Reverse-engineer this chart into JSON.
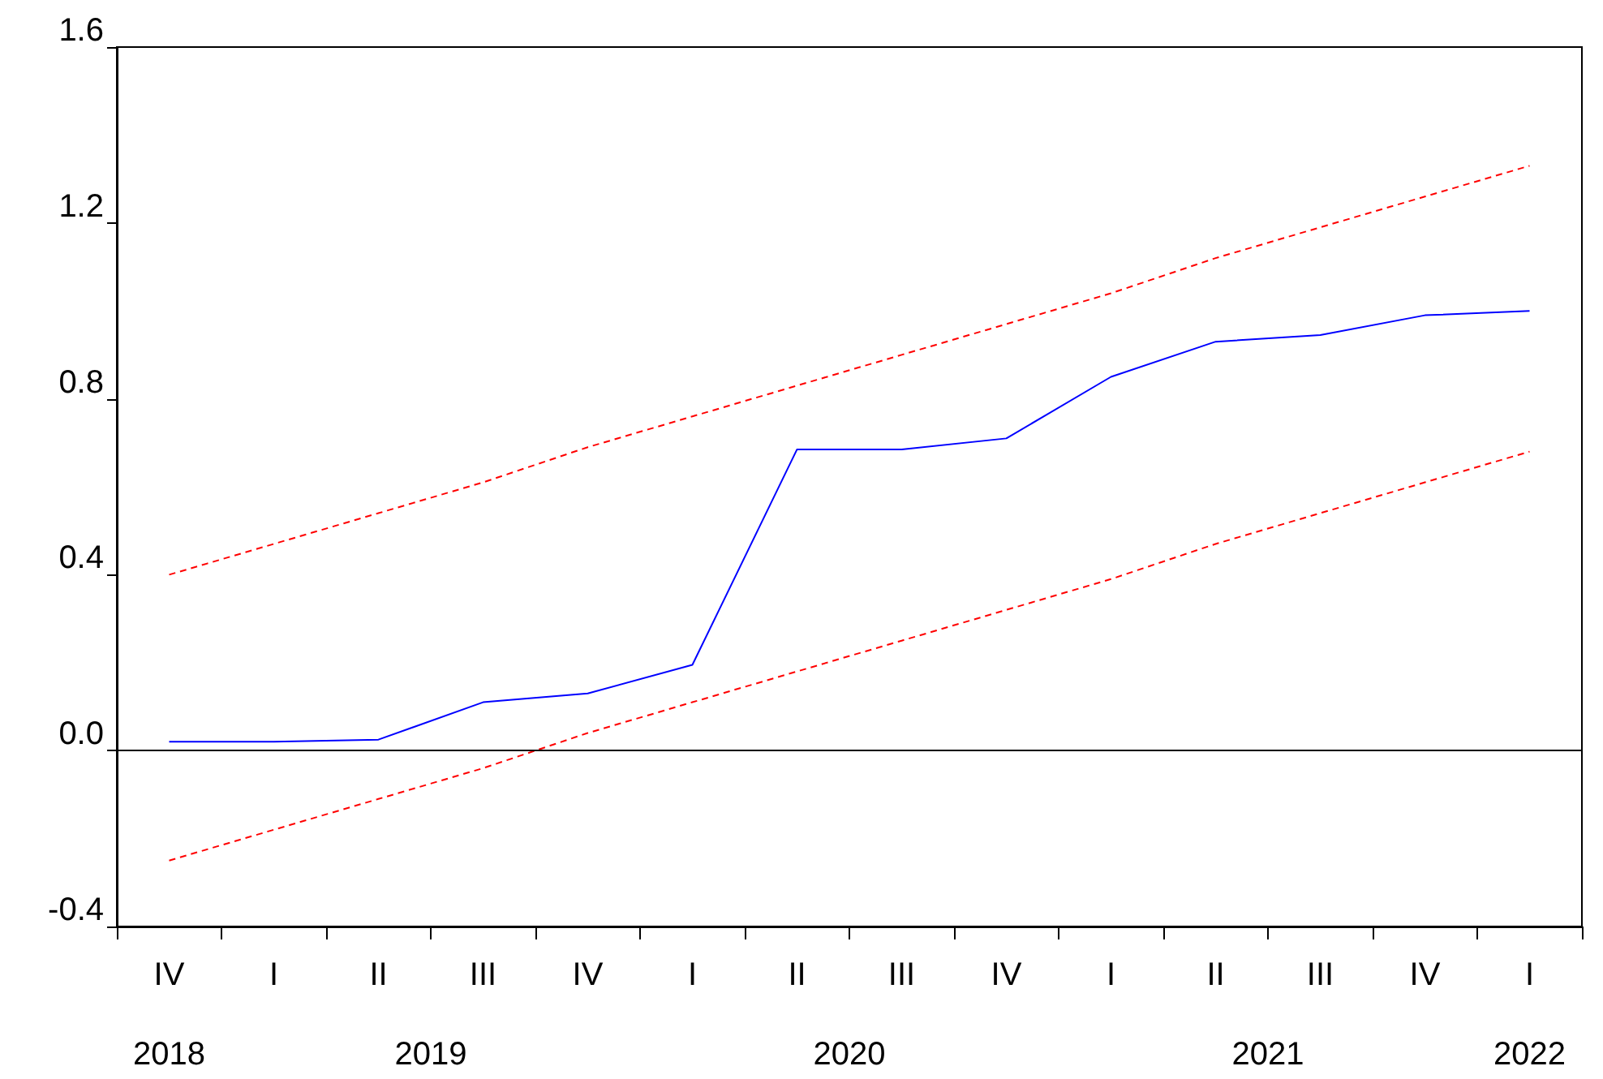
{
  "chart_data": {
    "type": "line",
    "categories": [
      "IV",
      "I",
      "II",
      "III",
      "IV",
      "I",
      "II",
      "III",
      "IV",
      "I",
      "II",
      "III",
      "IV",
      "I"
    ],
    "series": [
      {
        "color": "#0000ff",
        "line_style": "solid",
        "values": [
          0.02,
          0.02,
          0.025,
          0.11,
          0.13,
          0.195,
          0.685,
          0.685,
          0.71,
          0.85,
          0.93,
          0.945,
          0.99,
          1.0
        ]
      },
      {
        "color": "#ff0000",
        "line_style": "dashed",
        "values": [
          0.4,
          0.47,
          0.54,
          0.61,
          0.69,
          0.76,
          0.83,
          0.9,
          0.97,
          1.04,
          1.12,
          1.19,
          1.26,
          1.33
        ]
      },
      {
        "color": "#ff0000",
        "line_style": "dashed",
        "values": [
          -0.25,
          -0.18,
          -0.11,
          -0.04,
          0.04,
          0.11,
          0.18,
          0.25,
          0.32,
          0.39,
          0.47,
          0.54,
          0.61,
          0.68
        ]
      }
    ],
    "ylim": [
      -0.4,
      1.6
    ],
    "yticks": [
      {
        "value": -0.4,
        "label": "-0.4"
      },
      {
        "value": 0,
        "label": "0.0"
      },
      {
        "value": 0.4,
        "label": "0.4"
      },
      {
        "value": 0.8,
        "label": "0.8"
      },
      {
        "value": 1.2,
        "label": "1.2"
      },
      {
        "value": 1.6,
        "label": "1.6"
      }
    ],
    "ref_lines": [
      {
        "axis": "y",
        "value": 0,
        "color": "#000000",
        "line_style": "solid"
      }
    ],
    "annotations": [
      "2018",
      "2019",
      "2020",
      "2021",
      "2022"
    ],
    "grid": false,
    "marker": "none"
  }
}
